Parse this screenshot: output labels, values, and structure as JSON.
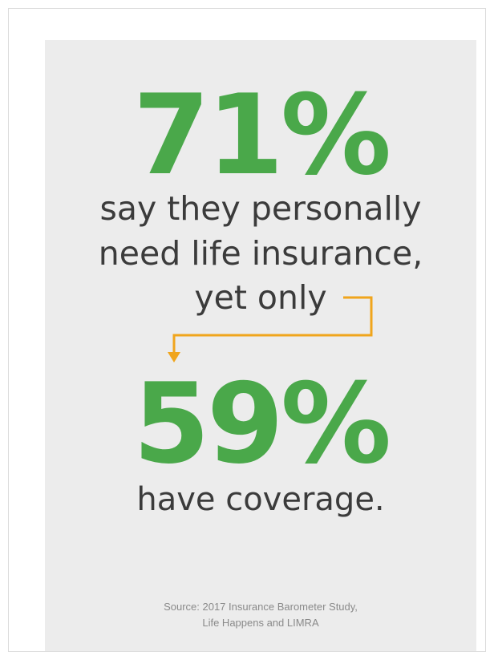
{
  "infographic": {
    "stat_primary": "71%",
    "line_1": "say they personally",
    "line_2": "need life insurance,",
    "line_3": "yet only",
    "stat_secondary": "59%",
    "line_4": "have coverage.",
    "source_line_1": "Source: 2017 Insurance Barometer Study,",
    "source_line_2": "Life Happens and LIMRA"
  },
  "colors": {
    "stat_green": "#4aa84a",
    "text_dark": "#3b3b3b",
    "arrow_orange": "#f0a51c",
    "card_background": "#ececec"
  },
  "icons": {
    "connector": "down-arrow-icon"
  }
}
